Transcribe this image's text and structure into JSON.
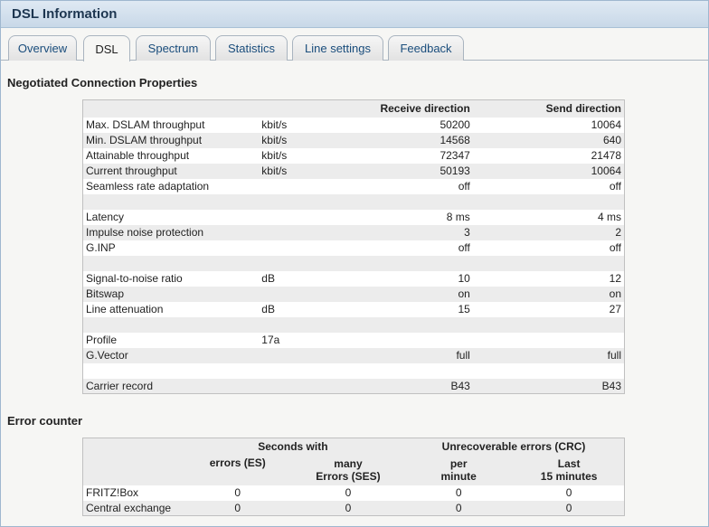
{
  "window": {
    "title": "DSL Information"
  },
  "tabs": [
    {
      "label": "Overview",
      "active": false
    },
    {
      "label": "DSL",
      "active": true
    },
    {
      "label": "Spectrum",
      "active": false
    },
    {
      "label": "Statistics",
      "active": false
    },
    {
      "label": "Line settings",
      "active": false
    },
    {
      "label": "Feedback",
      "active": false
    }
  ],
  "negotiated": {
    "title": "Negotiated Connection Properties",
    "headers": {
      "label": "",
      "unit": "",
      "receive": "Receive direction",
      "send": "Send direction"
    },
    "rows": [
      {
        "label": "Max. DSLAM throughput",
        "unit": "kbit/s",
        "receive": "50200",
        "send": "10064"
      },
      {
        "label": "Min. DSLAM throughput",
        "unit": "kbit/s",
        "receive": "14568",
        "send": "640"
      },
      {
        "label": "Attainable throughput",
        "unit": "kbit/s",
        "receive": "72347",
        "send": "21478"
      },
      {
        "label": "Current throughput",
        "unit": "kbit/s",
        "receive": "50193",
        "send": "10064"
      },
      {
        "label": "Seamless rate adaptation",
        "unit": "",
        "receive": "off",
        "send": "off"
      },
      {
        "label": "",
        "unit": "",
        "receive": "",
        "send": ""
      },
      {
        "label": "Latency",
        "unit": "",
        "receive": "8 ms",
        "send": "4 ms"
      },
      {
        "label": "Impulse noise protection",
        "unit": "",
        "receive": "3",
        "send": "2"
      },
      {
        "label": "G.INP",
        "unit": "",
        "receive": "off",
        "send": "off"
      },
      {
        "label": "",
        "unit": "",
        "receive": "",
        "send": ""
      },
      {
        "label": "Signal-to-noise ratio",
        "unit": "dB",
        "receive": "10",
        "send": "12"
      },
      {
        "label": "Bitswap",
        "unit": "",
        "receive": "on",
        "send": "on"
      },
      {
        "label": "Line attenuation",
        "unit": "dB",
        "receive": "15",
        "send": "27"
      },
      {
        "label": "",
        "unit": "",
        "receive": "",
        "send": ""
      },
      {
        "label": "Profile",
        "unit": "17a",
        "receive": "",
        "send": ""
      },
      {
        "label": "G.Vector",
        "unit": "",
        "receive": "full",
        "send": "full"
      },
      {
        "label": "",
        "unit": "",
        "receive": "",
        "send": ""
      },
      {
        "label": "Carrier record",
        "unit": "",
        "receive": "B43",
        "send": "B43"
      }
    ]
  },
  "errors": {
    "title": "Error counter",
    "group_headers": {
      "seconds": "Seconds with",
      "crc": "Unrecoverable errors (CRC)"
    },
    "sub_headers": {
      "es": "errors (ES)",
      "ses_line1": "many",
      "ses_line2": "Errors (SES)",
      "per_line1": "per",
      "per_line2": "minute",
      "last_line1": "Last",
      "last_line2": "15 minutes"
    },
    "rows": [
      {
        "label": "FRITZ!Box",
        "es": "0",
        "ses": "0",
        "per_minute": "0",
        "last15": "0"
      },
      {
        "label": "Central exchange",
        "es": "0",
        "ses": "0",
        "per_minute": "0",
        "last15": "0"
      }
    ]
  }
}
